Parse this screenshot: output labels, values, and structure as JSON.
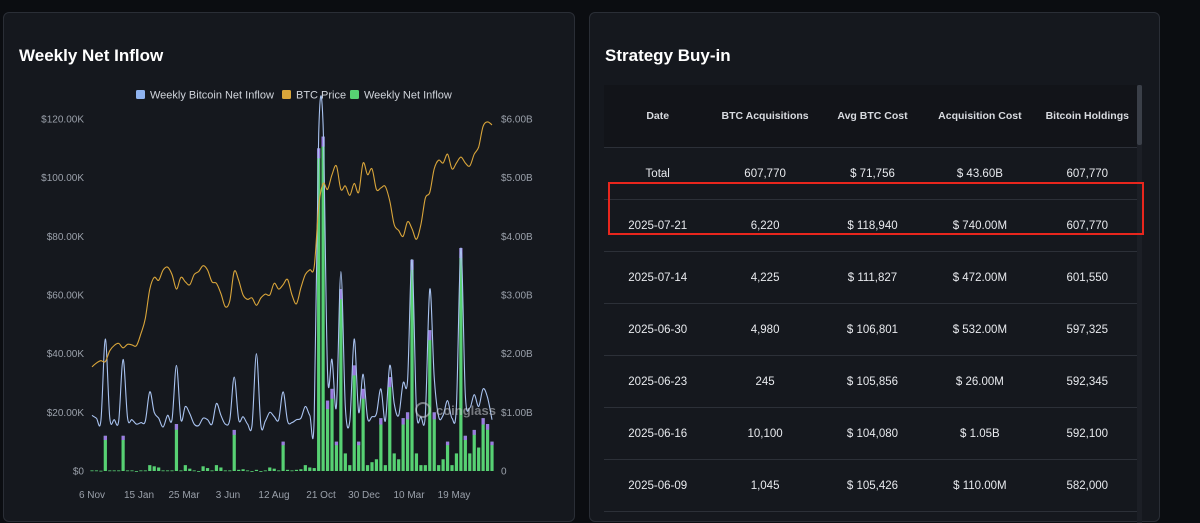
{
  "left_panel": {
    "title": "Weekly Net Inflow"
  },
  "right_panel": {
    "title": "Strategy Buy-in"
  },
  "chart_data": {
    "type": "line",
    "legend": [
      {
        "name": "Weekly Bitcoin Net Inflow",
        "color": "#8fb3f0"
      },
      {
        "name": "BTC Price",
        "color": "#d9a53a"
      },
      {
        "name": "Weekly Net Inflow",
        "color": "#57d173"
      }
    ],
    "legend_position": "top",
    "x_ticks": [
      "6 Nov",
      "15 Jan",
      "25 Mar",
      "3 Jun",
      "12 Aug",
      "21 Oct",
      "30 Dec",
      "10 Mar",
      "19 May"
    ],
    "y_left_ticks": [
      "$0",
      "$20.00K",
      "$40.00K",
      "$60.00K",
      "$80.00K",
      "$100.00K",
      "$120.00K"
    ],
    "y_right_ticks": [
      "0",
      "$1.00B",
      "$2.00B",
      "$3.00B",
      "$4.00B",
      "$5.00B",
      "$6.00B"
    ],
    "ylim_left": [
      0,
      120000
    ],
    "ylim_right": [
      0,
      6
    ],
    "series": [
      {
        "name": "BTC Price",
        "values": [
          35500,
          36800,
          37600,
          37300,
          41000,
          42800,
          43500,
          42000,
          43200,
          43000,
          42700,
          46800,
          52000,
          62000,
          66000,
          65000,
          68500,
          69500,
          67000,
          62000,
          66000,
          64500,
          63500,
          67000,
          68000,
          70000,
          68500,
          64500,
          64000,
          60500,
          56000,
          58000,
          68000,
          65000,
          60000,
          58500,
          59000,
          56500,
          59000,
          60300,
          60000,
          64000,
          62000,
          63500,
          65300,
          60000,
          57000,
          62500,
          67000,
          68600,
          69600,
          90000,
          98000,
          96000,
          101000,
          104000,
          96000,
          97200,
          94000,
          98000,
          95000,
          105000,
          101000,
          103000,
          96000,
          96500,
          97000,
          92000,
          84000,
          82000,
          80000,
          85000,
          82600,
          79000,
          84000,
          93000,
          95000,
          103000,
          106000,
          105000,
          108000,
          103000,
          105000,
          107000,
          105000,
          104000,
          108000,
          110500,
          117500,
          119000,
          118000
        ],
        "values_unit": "USD, left axis"
      },
      {
        "name": "Weekly Bitcoin Net Inflow",
        "values": [
          19000,
          18000,
          17200,
          45000,
          18000,
          17500,
          17000,
          38000,
          18000,
          17500,
          16000,
          16500,
          17000,
          27000,
          20000,
          18000,
          15000,
          19000,
          17500,
          36000,
          17500,
          22000,
          19500,
          16000,
          15500,
          18000,
          17500,
          16000,
          23000,
          19000,
          16000,
          17500,
          32000,
          17500,
          18500,
          16000,
          15500,
          40000,
          15500,
          17000,
          20000,
          18500,
          17500,
          27000,
          17000,
          16500,
          17500,
          18000,
          22000,
          19000,
          18000,
          115000,
          118000,
          33000,
          38000,
          22000,
          68000,
          22000,
          17000,
          45000,
          20000,
          33000,
          18000,
          18500,
          19500,
          28000,
          17000,
          36000,
          23000,
          19000,
          30000,
          31000,
          72000,
          21000,
          18500,
          19000,
          62000,
          32000,
          18500,
          19000,
          24000,
          18000,
          22000,
          76000,
          26000,
          21500,
          26000,
          22000,
          28000,
          25000,
          17500
        ],
        "values_unit": "USD, left axis"
      },
      {
        "name": "Weekly Net Inflow",
        "values": [
          0.01,
          0.01,
          0.005,
          0.6,
          0.01,
          0.01,
          0.01,
          0.6,
          0.01,
          0.01,
          0,
          0.01,
          0.01,
          0.1,
          0.08,
          0.06,
          0.01,
          0.01,
          0.01,
          0.8,
          0.01,
          0.1,
          0.04,
          0.01,
          0,
          0.08,
          0.05,
          0.01,
          0.1,
          0.06,
          0.01,
          0.01,
          0.7,
          0.02,
          0.03,
          0.01,
          0,
          0.02,
          0,
          0.01,
          0.06,
          0.04,
          0.01,
          0.5,
          0.02,
          0.01,
          0.02,
          0.03,
          0.1,
          0.06,
          0.05,
          5.5,
          5.7,
          1.2,
          1.4,
          0.5,
          3.1,
          0.3,
          0.1,
          1.8,
          0.5,
          1.4,
          0.1,
          0.15,
          0.2,
          0.9,
          0.1,
          1.6,
          0.3,
          0.2,
          0.9,
          1.0,
          3.6,
          0.3,
          0.1,
          0.1,
          2.4,
          1.0,
          0.1,
          0.2,
          0.5,
          0.1,
          0.3,
          3.8,
          0.6,
          0.3,
          0.7,
          0.4,
          0.9,
          0.8,
          0.5
        ],
        "values_unit": "USD billions, right axis"
      }
    ]
  },
  "table": {
    "columns": [
      "Date",
      "BTC Acquisitions",
      "Avg BTC Cost",
      "Acquisition Cost",
      "Bitcoin Holdings"
    ],
    "rows": [
      [
        "Total",
        "607,770",
        "$ 71,756",
        "$ 43.60B",
        "607,770"
      ],
      [
        "2025-07-21",
        "6,220",
        "$ 118,940",
        "$ 740.00M",
        "607,770"
      ],
      [
        "2025-07-14",
        "4,225",
        "$ 111,827",
        "$ 472.00M",
        "601,550"
      ],
      [
        "2025-06-30",
        "4,980",
        "$ 106,801",
        "$ 532.00M",
        "597,325"
      ],
      [
        "2025-06-23",
        "245",
        "$ 105,856",
        "$ 26.00M",
        "592,345"
      ],
      [
        "2025-06-16",
        "10,100",
        "$ 104,080",
        "$ 1.05B",
        "592,100"
      ],
      [
        "2025-06-09",
        "1,045",
        "$ 105,426",
        "$ 110.00M",
        "582,000"
      ]
    ],
    "highlighted_row": 1,
    "highlight_color": "#e8261d"
  },
  "watermark": "coinglass"
}
